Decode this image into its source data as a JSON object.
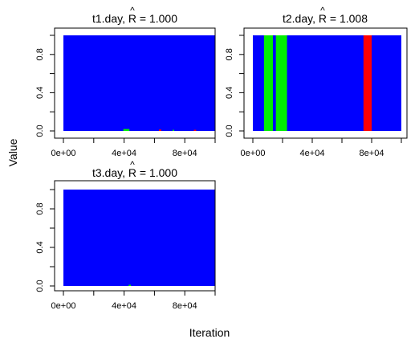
{
  "figure": {
    "xlabel": "Iteration",
    "ylabel": "Value"
  },
  "chart_data": [
    {
      "type": "area",
      "title_prefix": "t1.day, ",
      "rhat_symbol": "R",
      "title_suffix": " = 1.000",
      "xlim": [
        0,
        100000
      ],
      "ylim": [
        0,
        1
      ],
      "x_ticks": [
        0,
        40000,
        80000
      ],
      "x_tick_labels": [
        "0e+00",
        "4e+04",
        "8e+04"
      ],
      "y_ticks": [
        0,
        0.4,
        0.8
      ],
      "y_tick_labels": [
        "0.0",
        "0.4",
        "0.8"
      ],
      "background_series": {
        "name": "",
        "color": "#0000ff",
        "x": [
          0,
          100000
        ],
        "y": [
          0,
          1
        ]
      },
      "bands": [
        {
          "color": "#00ee00",
          "x_start": 39500,
          "x_end": 43500,
          "y_max": 0.02
        },
        {
          "color": "#ff0000",
          "x_start": 63000,
          "x_end": 64500,
          "y_max": 0.015
        },
        {
          "color": "#00ee00",
          "x_start": 72000,
          "x_end": 73000,
          "y_max": 0.012
        },
        {
          "color": "#ff0000",
          "x_start": 86000,
          "x_end": 87500,
          "y_max": 0.012
        }
      ]
    },
    {
      "type": "area",
      "title_prefix": "t2.day, ",
      "rhat_symbol": "R",
      "title_suffix": " = 1.008",
      "xlim": [
        0,
        100000
      ],
      "ylim": [
        0,
        1
      ],
      "x_ticks": [
        0,
        40000,
        80000
      ],
      "x_tick_labels": [
        "0e+00",
        "4e+04",
        "8e+04"
      ],
      "y_ticks": [
        0,
        0.4,
        0.8
      ],
      "y_tick_labels": [
        "0.0",
        "0.4",
        "0.8"
      ],
      "background_series": {
        "name": "",
        "color": "#0000ff",
        "x": [
          0,
          100000
        ],
        "y": [
          0,
          1
        ]
      },
      "bands": [
        {
          "color": "#00ee00",
          "x_start": 7500,
          "x_end": 13500,
          "y_max": 1
        },
        {
          "color": "#00ee00",
          "x_start": 15500,
          "x_end": 23000,
          "y_max": 1
        },
        {
          "color": "#ff0000",
          "x_start": 74500,
          "x_end": 80000,
          "y_max": 1
        }
      ]
    },
    {
      "type": "area",
      "title_prefix": "t3.day, ",
      "rhat_symbol": "R",
      "title_suffix": " = 1.000",
      "xlim": [
        0,
        100000
      ],
      "ylim": [
        0,
        1
      ],
      "x_ticks": [
        0,
        40000,
        80000
      ],
      "x_tick_labels": [
        "0e+00",
        "4e+04",
        "8e+04"
      ],
      "y_ticks": [
        0,
        0.4,
        0.8
      ],
      "y_tick_labels": [
        "0.0",
        "0.4",
        "0.8"
      ],
      "background_series": {
        "name": "",
        "color": "#0000ff",
        "x": [
          0,
          100000
        ],
        "y": [
          0,
          1
        ]
      },
      "bands": [
        {
          "color": "#00ee00",
          "x_start": 43000,
          "x_end": 44500,
          "y_max": 0.012
        }
      ]
    }
  ]
}
